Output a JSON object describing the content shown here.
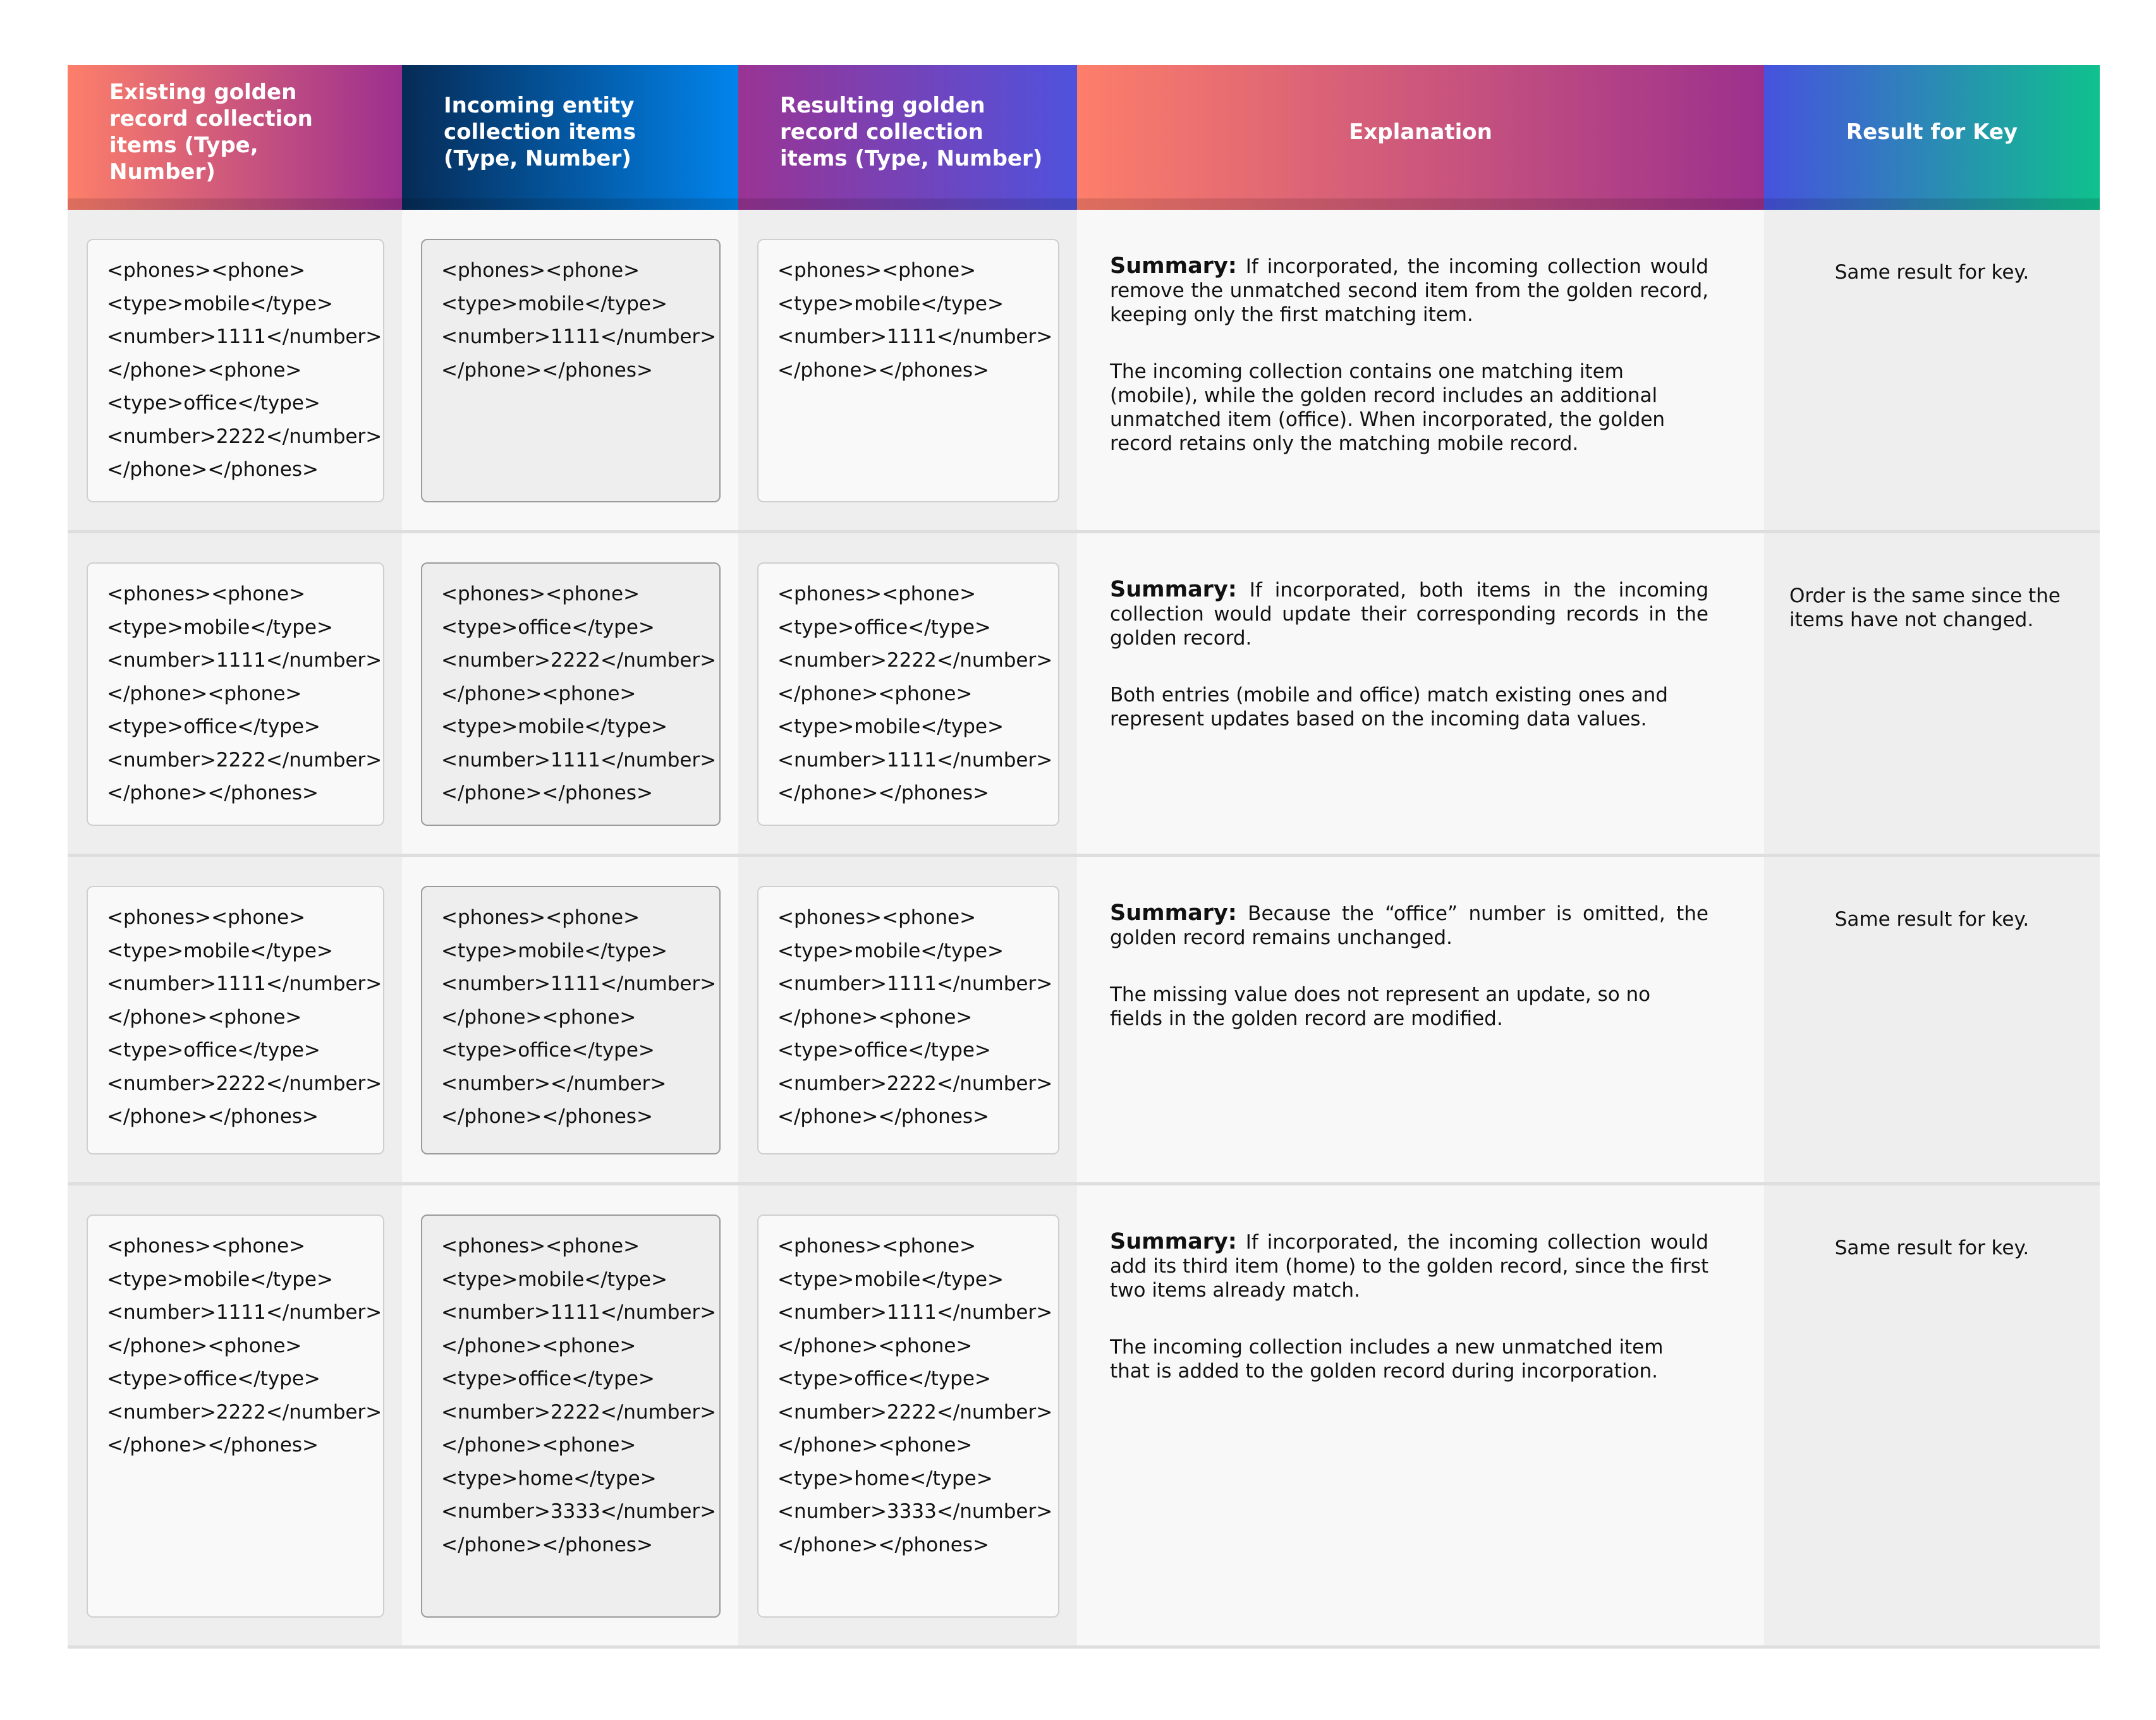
{
  "headers": [
    "Existing golden record collection items (Type, Number)",
    "Incoming entity collection items (Type, Number)",
    "Resulting golden record collection items (Type, Number)",
    "Explanation",
    "Result for Key"
  ],
  "colors": {
    "header_1": [
      "#fd7f6a",
      "#9c2f8f"
    ],
    "header_2": [
      "#062b56",
      "#0284ec"
    ],
    "header_3": [
      "#9a3494",
      "#4f52dd"
    ],
    "header_4": [
      "#fd7e6a",
      "#9c308d"
    ],
    "header_5": [
      "#4752de",
      "#0fc18d"
    ]
  },
  "rows": [
    {
      "existing": "<phones><phone>\n<type>mobile</type>\n<number>1111</number>\n</phone><phone>\n<type>office</type>\n<number>2222</number>\n</phone></phones>",
      "incoming": "<phones><phone>\n<type>mobile</type>\n<number>1111</number>\n</phone></phones>",
      "resulting": "<phones><phone>\n<type>mobile</type>\n<number>1111</number>\n</phone></phones>",
      "summary_label": "Summary:",
      "summary": " If incorporated, the incoming collection would remove the unmatched second item from the golden record, keeping only the first matching item.",
      "detail": "The incoming collection contains one matching item (mobile), while the golden record includes an additional unmatched item (office). When incorporated, the golden record retains only the matching mobile record.",
      "result": "Same result for key."
    },
    {
      "existing": "<phones><phone>\n<type>mobile</type>\n<number>1111</number>\n</phone><phone>\n<type>office</type>\n<number>2222</number>\n</phone></phones>",
      "incoming": "<phones><phone>\n<type>office</type>\n<number>2222</number>\n</phone><phone>\n<type>mobile</type>\n<number>1111</number>\n</phone></phones>",
      "resulting": "<phones><phone>\n<type>office</type>\n<number>2222</number>\n</phone><phone>\n<type>mobile</type>\n<number>1111</number>\n</phone></phones>",
      "summary_label": "Summary:",
      "summary": "  If incorporated, both items in the incoming collection would update their corresponding records in the golden record.",
      "detail": "Both entries (mobile and office) match existing ones and represent updates based on the incoming data values.",
      "result": "Order is the same since the items have not changed."
    },
    {
      "existing": "<phones><phone>\n<type>mobile</type>\n<number>1111</number>\n</phone><phone>\n<type>office</type>\n<number>2222</number>\n</phone></phones>",
      "incoming": "<phones><phone>\n<type>mobile</type>\n<number>1111</number>\n</phone><phone>\n<type>office</type>\n<number></number>\n</phone></phones>",
      "resulting": "<phones><phone>\n<type>mobile</type>\n<number>1111</number>\n</phone><phone>\n<type>office</type>\n<number>2222</number>\n</phone></phones>",
      "summary_label": "Summary:",
      "summary": " Because the “office” number is omitted, the golden record remains unchanged.",
      "detail": "The missing value does not represent an update, so no fields in the golden record are modified.",
      "result": "Same result for key."
    },
    {
      "existing": "<phones><phone>\n<type>mobile</type>\n<number>1111</number>\n</phone><phone>\n<type>office</type>\n<number>2222</number>\n</phone></phones>",
      "incoming": "<phones><phone>\n<type>mobile</type>\n<number>1111</number>\n</phone><phone>\n<type>office</type>\n<number>2222</number>\n</phone><phone>\n<type>home</type>\n<number>3333</number>\n</phone></phones>",
      "resulting": "<phones><phone>\n<type>mobile</type>\n<number>1111</number>\n</phone><phone>\n<type>office</type>\n<number>2222</number>\n</phone><phone>\n<type>home</type>\n<number>3333</number>\n</phone></phones>",
      "summary_label": "Summary:",
      "summary": " If incorporated, the incoming collection would add its third item (home) to the golden record, since the first two items already match.",
      "detail": "The incoming collection includes a new unmatched item that is added to the golden record during incorporation.",
      "result": "Same result for key."
    }
  ]
}
